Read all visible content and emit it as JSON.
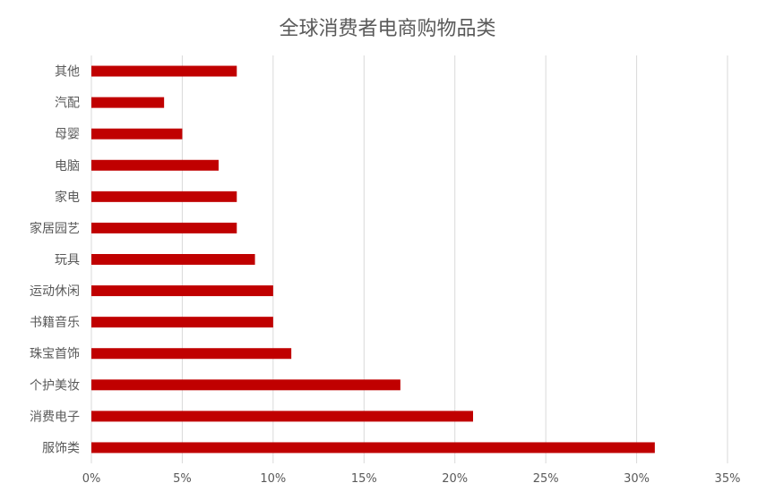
{
  "chart_data": {
    "type": "bar",
    "orientation": "horizontal",
    "title": "全球消费者电商购物品类",
    "categories": [
      "其他",
      "汽配",
      "母婴",
      "电脑",
      "家电",
      "家居园艺",
      "玩具",
      "运动休闲",
      "书籍音乐",
      "珠宝首饰",
      "个护美妆",
      "消费电子",
      "服饰类"
    ],
    "values": [
      8,
      4,
      5,
      7,
      8,
      8,
      9,
      10,
      10,
      11,
      17,
      21,
      31
    ],
    "value_unit": "%",
    "xlim": [
      0,
      35
    ],
    "xticks": [
      0,
      5,
      10,
      15,
      20,
      25,
      30,
      35
    ],
    "xtick_labels": [
      "0%",
      "5%",
      "10%",
      "15%",
      "20%",
      "25%",
      "30%",
      "35%"
    ],
    "xlabel": "",
    "ylabel": "",
    "grid": "vertical",
    "legend": "none",
    "colors": {
      "bar": "#c00000",
      "grid": "#d9d9d9",
      "text": "#595959",
      "title": "#595959"
    }
  }
}
